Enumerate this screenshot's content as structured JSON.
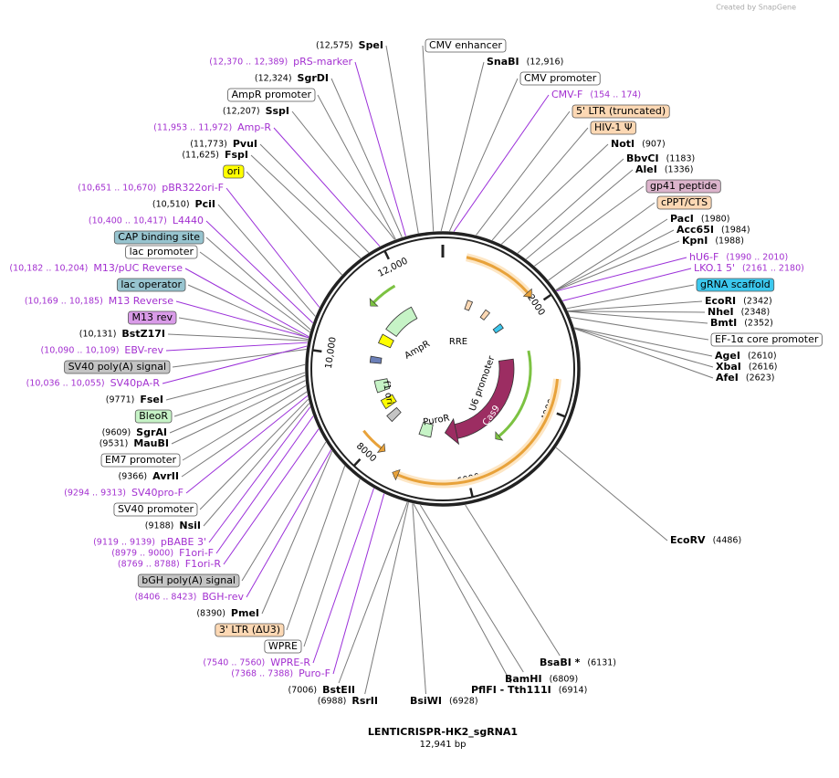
{
  "credit": "Created by SnapGene",
  "labels": [
    {
      "name": "SpeI",
      "position": "(12,575)"
    },
    {
      "name": "pRS-marker",
      "position": "(12,370 .. 12,389)"
    },
    {
      "name": "SgrDI",
      "position": "(12,324)"
    },
    {
      "name": "AmpR promoter"
    },
    {
      "name": "SspI",
      "position": "(12,207)"
    },
    {
      "name": "Amp-R",
      "position": "(11,953 .. 11,972)"
    },
    {
      "name": "PvuI",
      "position": "(11,773)"
    },
    {
      "name": "FspI",
      "position": "(11,625)"
    },
    {
      "name": "ori"
    },
    {
      "name": "pBR322ori-F",
      "position": "(10,651 .. 10,670)"
    },
    {
      "name": "PciI",
      "position": "(10,510)"
    },
    {
      "name": "L4440",
      "position": "(10,400 .. 10,417)"
    },
    {
      "name": "CAP binding site"
    },
    {
      "name": "lac promoter"
    },
    {
      "name": "M13/pUC Reverse",
      "position": "(10,182 .. 10,204)"
    },
    {
      "name": "lac operator"
    },
    {
      "name": "M13 Reverse",
      "position": "(10,169 .. 10,185)"
    },
    {
      "name": "M13 rev"
    },
    {
      "name": "BstZ17I",
      "position": "(10,131)"
    },
    {
      "name": "EBV-rev",
      "position": "(10,090 .. 10,109)"
    },
    {
      "name": "SV40 poly(A) signal"
    },
    {
      "name": "SV40pA-R",
      "position": "(10,036 .. 10,055)"
    },
    {
      "name": "FseI",
      "position": "(9771)"
    },
    {
      "name": "BleoR"
    },
    {
      "name": "SgrAI",
      "position": "(9609)"
    },
    {
      "name": "MauBI",
      "position": "(9531)"
    },
    {
      "name": "EM7 promoter"
    },
    {
      "name": "AvrII",
      "position": "(9366)"
    },
    {
      "name": "SV40pro-F",
      "position": "(9294 .. 9313)"
    },
    {
      "name": "SV40 promoter"
    },
    {
      "name": "NsiI",
      "position": "(9188)"
    },
    {
      "name": "pBABE 3'",
      "position": "(9119 .. 9139)"
    },
    {
      "name": "F1ori-F",
      "position": "(8979 .. 9000)"
    },
    {
      "name": "F1ori-R",
      "position": "(8769 .. 8788)"
    },
    {
      "name": "bGH poly(A) signal"
    },
    {
      "name": "BGH-rev",
      "position": "(8406 .. 8423)"
    },
    {
      "name": "PmeI",
      "position": "(8390)"
    },
    {
      "name": "3' LTR (ΔU3)"
    },
    {
      "name": "WPRE"
    },
    {
      "name": "WPRE-R",
      "position": "(7540 .. 7560)"
    },
    {
      "name": "Puro-F",
      "position": "(7368 .. 7388)"
    },
    {
      "name": "BstEII",
      "position": "(7006)"
    },
    {
      "name": "RsrII",
      "position": "(6988)"
    },
    {
      "name": "BsiWI",
      "position": "(6928)"
    },
    {
      "name": "PflFI  - Tth111I",
      "position": "(6914)"
    },
    {
      "name": "BamHI",
      "position": "(6809)"
    },
    {
      "name": "BsaBI *",
      "position": "(6131)"
    },
    {
      "name": "EcoRV",
      "position": "(4486)"
    },
    {
      "name": "CMV enhancer"
    },
    {
      "name": "SnaBI",
      "position": "(12,916)"
    },
    {
      "name": "CMV promoter"
    },
    {
      "name": "CMV-F",
      "position": "(154 .. 174)"
    },
    {
      "name": "5' LTR (truncated)"
    },
    {
      "name": "HIV-1 Ψ"
    },
    {
      "name": "NotI",
      "position": "(907)"
    },
    {
      "name": "BbvCI",
      "position": "(1183)"
    },
    {
      "name": "AleI",
      "position": "(1336)"
    },
    {
      "name": "gp41 peptide"
    },
    {
      "name": "cPPT/CTS"
    },
    {
      "name": "PacI",
      "position": "(1980)"
    },
    {
      "name": "Acc65I",
      "position": "(1984)"
    },
    {
      "name": "KpnI",
      "position": "(1988)"
    },
    {
      "name": "hU6-F",
      "position": "(1990 .. 2010)"
    },
    {
      "name": "LKO.1 5'",
      "position": "(2161 .. 2180)"
    },
    {
      "name": "gRNA scaffold"
    },
    {
      "name": "EcoRI",
      "position": "(2342)"
    },
    {
      "name": "NheI",
      "position": "(2348)"
    },
    {
      "name": "BmtI",
      "position": "(2352)"
    },
    {
      "name": "EF-1α core promoter"
    },
    {
      "name": "AgeI",
      "position": "(2610)"
    },
    {
      "name": "XbaI",
      "position": "(2616)"
    },
    {
      "name": "AfeI",
      "position": "(2623)"
    }
  ],
  "features": [
    "AmpR",
    "RRE",
    "U6 promoter",
    "Cas9",
    "PuroR",
    "f1 ori"
  ],
  "ruler": [
    "2000",
    "4000",
    "6000",
    "8000",
    "10,000",
    "12,000"
  ],
  "footer": {
    "name": "LENTICRISPR-HK2_sgRNA1",
    "size": "12,941 bp"
  }
}
